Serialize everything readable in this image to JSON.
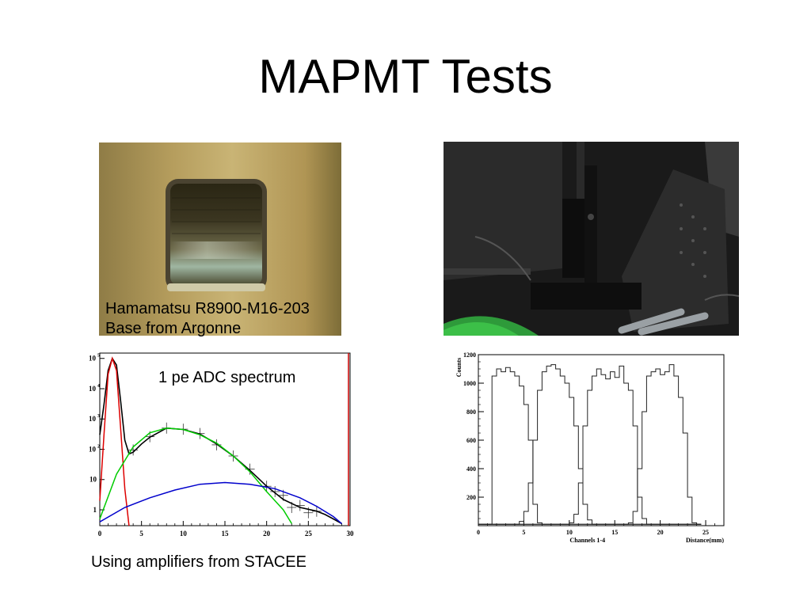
{
  "slide": {
    "title": "MAPMT Tests",
    "caption_pmt_line1": "Hamamatsu R8900-M16-203",
    "caption_pmt_line2": "Base from Argonne",
    "caption_spectrum": "1 pe ADC spectrum",
    "caption_amplifiers": "Using amplifiers from STACEE"
  },
  "chart_data": [
    {
      "type": "line",
      "scale": "log-y",
      "xlim": [
        0,
        30
      ],
      "ylim": [
        0.3,
        150000
      ],
      "xticks": [
        0,
        5,
        10,
        15,
        20,
        25,
        30
      ],
      "ytick_labels": [
        {
          "value": 100000,
          "base": "10",
          "exp": "5"
        },
        {
          "value": 10000,
          "base": "10",
          "exp": "4"
        },
        {
          "value": 1000,
          "base": "10",
          "exp": "3"
        },
        {
          "value": 100,
          "base": "10",
          "exp": "2"
        },
        {
          "value": 10,
          "base": "10",
          "exp": ""
        },
        {
          "value": 1,
          "base": "1",
          "exp": ""
        }
      ],
      "series": [
        {
          "color": "#000000",
          "x": [
            0,
            0.5,
            1,
            1.5,
            2,
            2.5,
            3,
            3.5,
            4,
            5,
            6,
            8,
            10,
            12,
            14,
            16,
            18,
            20,
            22,
            24,
            26,
            27,
            28,
            29
          ],
          "y": [
            300,
            3000,
            40000,
            100000,
            60000,
            4000,
            200,
            70,
            80,
            150,
            250,
            500,
            450,
            320,
            150,
            60,
            20,
            6,
            2.2,
            1.2,
            0.9,
            0.7,
            0.5,
            0.35
          ]
        },
        {
          "color": "#dd0000",
          "x": [
            0,
            0.5,
            1,
            1.5,
            2,
            2.5,
            3,
            3.5
          ],
          "y": [
            2,
            300,
            30000,
            100000,
            40000,
            500,
            5,
            0.3
          ]
        },
        {
          "color": "#00cc00",
          "x": [
            0,
            2,
            4,
            6,
            8,
            10,
            12,
            14,
            16,
            18,
            20,
            21,
            22,
            23
          ],
          "y": [
            0.5,
            15,
            120,
            350,
            500,
            450,
            300,
            160,
            60,
            18,
            4,
            2,
            1,
            0.35
          ]
        },
        {
          "color": "#0000cc",
          "x": [
            0,
            3,
            6,
            9,
            12,
            15,
            18,
            21,
            24,
            26,
            28,
            29
          ],
          "y": [
            0.4,
            1.2,
            2.5,
            4.5,
            7,
            8,
            7,
            5,
            2.5,
            1.3,
            0.6,
            0.35
          ]
        }
      ],
      "markers": {
        "x": [
          4,
          6,
          8,
          10,
          12,
          14,
          16,
          18,
          20,
          21,
          22,
          23,
          24,
          25,
          26
        ],
        "y": [
          95,
          260,
          500,
          460,
          330,
          140,
          60,
          22,
          6,
          4,
          3,
          1.2,
          1.4,
          0.8,
          0.9
        ]
      }
    },
    {
      "type": "line",
      "xlabel": "Channels 1-4",
      "xlabel2": "Distance(mm)",
      "ylabel": "Counts",
      "xlim": [
        0,
        27
      ],
      "ylim": [
        0,
        1200
      ],
      "xticks": [
        0,
        5,
        10,
        15,
        20,
        25
      ],
      "yticks": [
        200,
        400,
        600,
        800,
        1000,
        1200
      ],
      "series": [
        {
          "x": [
            0,
            0.5,
            1,
            1.5,
            2,
            2.5,
            3,
            3.5,
            4,
            4.5,
            5,
            5.5,
            6,
            6.5,
            7,
            7.5,
            8,
            8.5,
            9,
            9.5,
            10,
            10.5,
            11,
            11.5,
            12,
            12.5,
            13,
            13.5,
            14,
            14.5,
            15,
            15.5,
            16,
            16.5,
            17,
            17.5,
            18,
            18.5,
            19,
            19.5,
            20,
            20.5,
            21,
            21.5,
            22,
            22.5,
            23,
            23.5,
            24
          ],
          "y": [
            10,
            10,
            10,
            1050,
            1100,
            1080,
            1110,
            1080,
            1050,
            980,
            850,
            600,
            150,
            20,
            10,
            10,
            10,
            10,
            10,
            10,
            10,
            10,
            10,
            10,
            10,
            10,
            10,
            10,
            10,
            10,
            10,
            10,
            10,
            10,
            10,
            10,
            10,
            10,
            10,
            10,
            10,
            10,
            10,
            10,
            10,
            10,
            10,
            10,
            10
          ]
        },
        {
          "x": [
            0,
            0.5,
            1,
            1.5,
            2,
            2.5,
            3,
            3.5,
            4,
            4.5,
            5,
            5.5,
            6,
            6.5,
            7,
            7.5,
            8,
            8.5,
            9,
            9.5,
            10,
            10.5,
            11,
            11.5,
            12,
            12.5,
            13,
            13.5,
            14,
            14.5,
            15,
            15.5,
            16,
            16.5,
            17,
            17.5,
            18,
            18.5,
            19,
            19.5,
            20,
            20.5,
            21,
            21.5,
            22,
            22.5,
            23,
            23.5,
            24
          ],
          "y": [
            10,
            10,
            10,
            10,
            10,
            10,
            10,
            10,
            10,
            30,
            100,
            300,
            600,
            950,
            1080,
            1120,
            1130,
            1100,
            1050,
            1000,
            900,
            700,
            400,
            150,
            40,
            10,
            10,
            10,
            10,
            10,
            10,
            10,
            10,
            10,
            10,
            10,
            10,
            10,
            10,
            10,
            10,
            10,
            10,
            10,
            10,
            10,
            10,
            10,
            10
          ]
        },
        {
          "x": [
            0,
            0.5,
            1,
            1.5,
            2,
            2.5,
            3,
            3.5,
            4,
            4.5,
            5,
            5.5,
            6,
            6.5,
            7,
            7.5,
            8,
            8.5,
            9,
            9.5,
            10,
            10.5,
            11,
            11.5,
            12,
            12.5,
            13,
            13.5,
            14,
            14.5,
            15,
            15.5,
            16,
            16.5,
            17,
            17.5,
            18,
            18.5,
            19,
            19.5,
            20,
            20.5,
            21,
            21.5,
            22,
            22.5,
            23,
            23.5,
            24
          ],
          "y": [
            10,
            10,
            10,
            10,
            10,
            10,
            10,
            10,
            10,
            10,
            10,
            10,
            10,
            10,
            10,
            10,
            10,
            10,
            10,
            10,
            20,
            80,
            300,
            700,
            950,
            1050,
            1100,
            1060,
            1030,
            1080,
            1040,
            1120,
            1000,
            950,
            700,
            200,
            50,
            10,
            10,
            10,
            10,
            10,
            10,
            10,
            10,
            10,
            10,
            10,
            10
          ]
        },
        {
          "x": [
            0,
            0.5,
            1,
            1.5,
            2,
            2.5,
            3,
            3.5,
            4,
            4.5,
            5,
            5.5,
            6,
            6.5,
            7,
            7.5,
            8,
            8.5,
            9,
            9.5,
            10,
            10.5,
            11,
            11.5,
            12,
            12.5,
            13,
            13.5,
            14,
            14.5,
            15,
            15.5,
            16,
            16.5,
            17,
            17.5,
            18,
            18.5,
            19,
            19.5,
            20,
            20.5,
            21,
            21.5,
            22,
            22.5,
            23,
            23.5,
            24
          ],
          "y": [
            10,
            10,
            10,
            10,
            10,
            10,
            10,
            10,
            10,
            10,
            10,
            10,
            10,
            10,
            10,
            10,
            10,
            10,
            10,
            10,
            10,
            10,
            10,
            10,
            10,
            10,
            10,
            10,
            10,
            10,
            10,
            10,
            10,
            20,
            100,
            400,
            800,
            1050,
            1080,
            1100,
            1060,
            1080,
            1130,
            1050,
            900,
            650,
            200,
            20,
            10
          ]
        }
      ]
    }
  ]
}
